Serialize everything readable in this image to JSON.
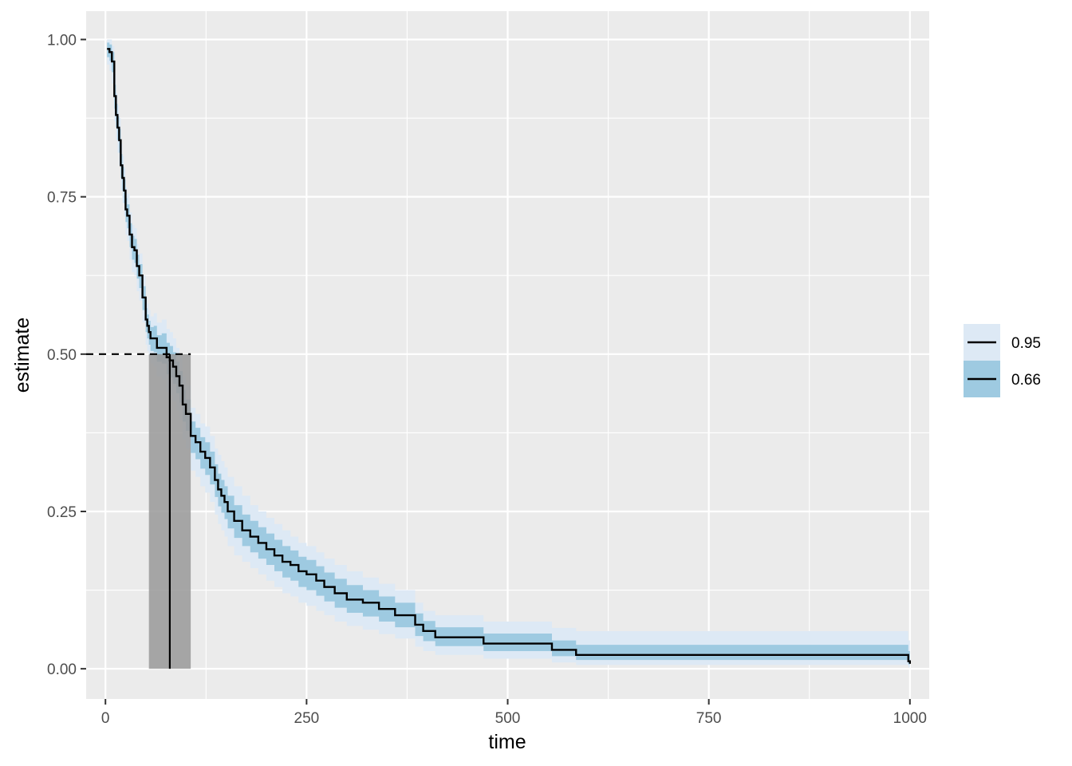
{
  "chart_data": {
    "type": "line",
    "xlabel": "time",
    "ylabel": "estimate",
    "xlim": [
      -24,
      1024
    ],
    "ylim": [
      -0.048,
      1.045
    ],
    "x_ticks": [
      0,
      250,
      500,
      750,
      1000
    ],
    "x_tick_labels": [
      "0",
      "250",
      "500",
      "750",
      "1000"
    ],
    "y_ticks": [
      0,
      0.25,
      0.5,
      0.75,
      1.0
    ],
    "y_tick_labels": [
      "0.00",
      "0.25",
      "0.50",
      "0.75",
      "1.00"
    ],
    "grid": true,
    "legend_position": "right",
    "legend": [
      {
        "label": "0.95",
        "fill": "#dde9f5"
      },
      {
        "label": "0.66",
        "fill": "#9ecae1"
      }
    ],
    "colors": {
      "panel": "#ebebeb",
      "grid": "#ffffff",
      "line": "#000000",
      "ci95": "#dde9f5",
      "ci66": "#9ecae1",
      "median_band": "#999999"
    },
    "median": {
      "level": 0.5,
      "time": 80,
      "ci_low": 54,
      "ci_high": 106
    },
    "series": [
      {
        "time": [
          2,
          5,
          8,
          11,
          13,
          15,
          17,
          19,
          21,
          23,
          25,
          27,
          30,
          33,
          36,
          39,
          42,
          46,
          50,
          52,
          54,
          56,
          60,
          64,
          70,
          76,
          80,
          84,
          88,
          92,
          96,
          100,
          106,
          112,
          118,
          124,
          130,
          136,
          140,
          144,
          148,
          152,
          160,
          170,
          180,
          190,
          200,
          210,
          220,
          230,
          240,
          250,
          262,
          272,
          285,
          300,
          320,
          340,
          360,
          385,
          395,
          410,
          470,
          555,
          585,
          992,
          998,
          1000
        ],
        "estimate": [
          0.985,
          0.98,
          0.965,
          0.91,
          0.88,
          0.86,
          0.84,
          0.8,
          0.78,
          0.76,
          0.73,
          0.72,
          0.69,
          0.67,
          0.665,
          0.64,
          0.625,
          0.59,
          0.555,
          0.545,
          0.535,
          0.525,
          0.525,
          0.51,
          0.51,
          0.495,
          0.49,
          0.48,
          0.465,
          0.45,
          0.42,
          0.405,
          0.37,
          0.36,
          0.345,
          0.335,
          0.32,
          0.3,
          0.285,
          0.275,
          0.265,
          0.25,
          0.235,
          0.22,
          0.21,
          0.2,
          0.19,
          0.18,
          0.17,
          0.165,
          0.155,
          0.15,
          0.14,
          0.13,
          0.12,
          0.11,
          0.105,
          0.095,
          0.085,
          0.07,
          0.06,
          0.05,
          0.04,
          0.03,
          0.022,
          0.022,
          0.012,
          0.008
        ],
        "lower95": [
          0.96,
          0.95,
          0.93,
          0.87,
          0.84,
          0.82,
          0.8,
          0.76,
          0.74,
          0.72,
          0.69,
          0.68,
          0.65,
          0.63,
          0.625,
          0.6,
          0.585,
          0.55,
          0.515,
          0.505,
          0.495,
          0.485,
          0.48,
          0.465,
          0.46,
          0.44,
          0.435,
          0.425,
          0.41,
          0.395,
          0.365,
          0.35,
          0.315,
          0.305,
          0.29,
          0.28,
          0.265,
          0.245,
          0.23,
          0.22,
          0.21,
          0.195,
          0.18,
          0.17,
          0.16,
          0.15,
          0.14,
          0.13,
          0.12,
          0.115,
          0.105,
          0.1,
          0.092,
          0.085,
          0.075,
          0.068,
          0.062,
          0.055,
          0.048,
          0.035,
          0.028,
          0.022,
          0.016,
          0.01,
          0.006,
          0.006,
          0.002,
          0.001
        ],
        "upper95": [
          1.0,
          1.0,
          0.99,
          0.945,
          0.915,
          0.895,
          0.875,
          0.835,
          0.815,
          0.795,
          0.765,
          0.755,
          0.725,
          0.705,
          0.7,
          0.675,
          0.66,
          0.625,
          0.59,
          0.58,
          0.57,
          0.56,
          0.565,
          0.55,
          0.555,
          0.54,
          0.535,
          0.525,
          0.51,
          0.495,
          0.465,
          0.45,
          0.415,
          0.405,
          0.39,
          0.385,
          0.37,
          0.35,
          0.34,
          0.33,
          0.32,
          0.305,
          0.29,
          0.275,
          0.26,
          0.25,
          0.24,
          0.23,
          0.22,
          0.21,
          0.2,
          0.195,
          0.185,
          0.175,
          0.165,
          0.155,
          0.145,
          0.135,
          0.125,
          0.105,
          0.092,
          0.085,
          0.075,
          0.065,
          0.06,
          0.06,
          0.045,
          0.03
        ],
        "lower66": [
          0.972,
          0.966,
          0.948,
          0.89,
          0.86,
          0.84,
          0.82,
          0.78,
          0.76,
          0.74,
          0.71,
          0.7,
          0.67,
          0.65,
          0.645,
          0.62,
          0.605,
          0.57,
          0.535,
          0.525,
          0.515,
          0.505,
          0.503,
          0.488,
          0.485,
          0.468,
          0.463,
          0.453,
          0.438,
          0.423,
          0.393,
          0.378,
          0.343,
          0.333,
          0.318,
          0.308,
          0.293,
          0.273,
          0.258,
          0.248,
          0.238,
          0.223,
          0.208,
          0.195,
          0.185,
          0.175,
          0.165,
          0.155,
          0.145,
          0.14,
          0.13,
          0.125,
          0.116,
          0.107,
          0.097,
          0.089,
          0.083,
          0.075,
          0.066,
          0.052,
          0.044,
          0.036,
          0.028,
          0.02,
          0.014,
          0.014,
          0.007,
          0.004
        ],
        "upper66": [
          0.995,
          0.992,
          0.98,
          0.928,
          0.898,
          0.878,
          0.858,
          0.818,
          0.798,
          0.778,
          0.748,
          0.738,
          0.708,
          0.688,
          0.683,
          0.658,
          0.643,
          0.608,
          0.573,
          0.563,
          0.553,
          0.543,
          0.545,
          0.53,
          0.533,
          0.518,
          0.513,
          0.503,
          0.488,
          0.473,
          0.443,
          0.428,
          0.393,
          0.383,
          0.368,
          0.36,
          0.345,
          0.325,
          0.31,
          0.3,
          0.29,
          0.275,
          0.26,
          0.245,
          0.235,
          0.225,
          0.215,
          0.205,
          0.195,
          0.188,
          0.178,
          0.173,
          0.163,
          0.153,
          0.143,
          0.133,
          0.125,
          0.115,
          0.105,
          0.088,
          0.076,
          0.066,
          0.056,
          0.045,
          0.038,
          0.038,
          0.028,
          0.02
        ]
      }
    ]
  }
}
